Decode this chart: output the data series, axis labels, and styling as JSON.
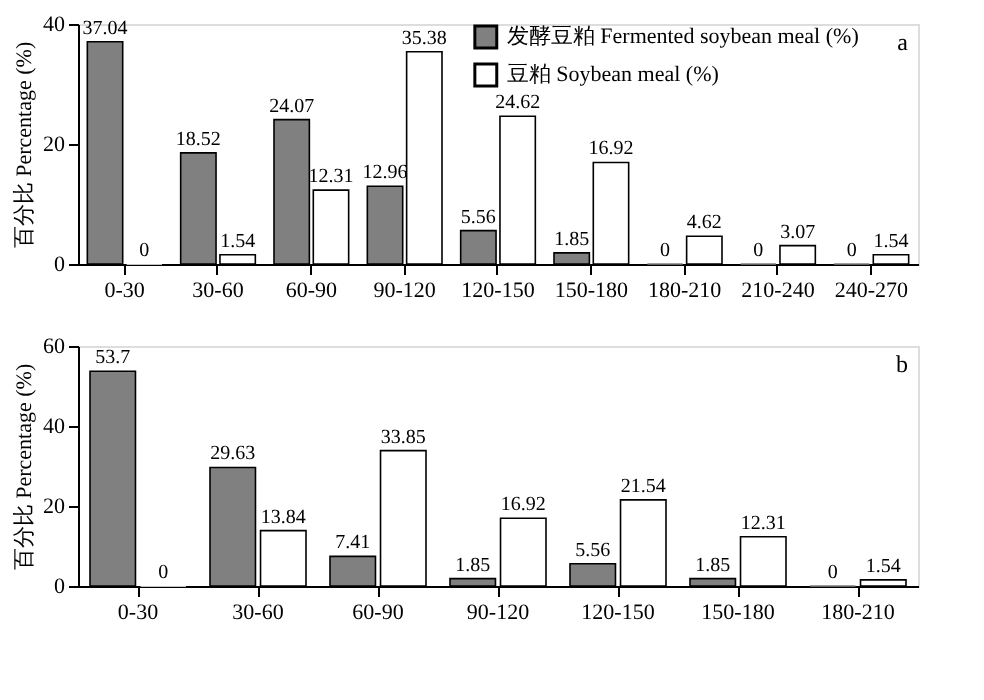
{
  "chart_data": [
    {
      "type": "bar",
      "ylabel": "百分比 Percentage (%)",
      "categories": [
        "0-30",
        "30-60",
        "60-90",
        "90-120",
        "120-150",
        "150-180",
        "180-210",
        "210-240",
        "240-270"
      ],
      "series": [
        {
          "name": "发酵豆粕 Fermented soybean meal (%)",
          "color": "#808080",
          "values": [
            37.04,
            18.52,
            24.07,
            12.96,
            5.56,
            1.85,
            0,
            0,
            0
          ]
        },
        {
          "name": "豆粕 Soybean meal (%)",
          "color": "#ffffff",
          "values": [
            0,
            1.54,
            12.31,
            35.38,
            24.62,
            16.92,
            4.62,
            3.07,
            1.54
          ]
        }
      ],
      "ylim": [
        0,
        40
      ],
      "yticks": [
        0,
        20,
        40
      ],
      "data_labels": true,
      "legend": "top right",
      "grid": false,
      "annotations": [
        "a"
      ]
    },
    {
      "type": "bar",
      "ylabel": "百分比 Percentage (%)",
      "categories": [
        "0-30",
        "30-60",
        "60-90",
        "90-120",
        "120-150",
        "150-180",
        "180-210"
      ],
      "series": [
        {
          "color": "#808080",
          "values": [
            53.7,
            29.63,
            7.41,
            1.85,
            5.56,
            1.85,
            0
          ]
        },
        {
          "color": "#ffffff",
          "values": [
            0,
            13.84,
            33.85,
            16.92,
            21.54,
            12.31,
            1.54
          ]
        }
      ],
      "ylim": [
        0,
        60
      ],
      "yticks": [
        0,
        20,
        40,
        60
      ],
      "data_labels": true,
      "legend": false,
      "grid": false,
      "annotations": [
        "b"
      ]
    }
  ]
}
